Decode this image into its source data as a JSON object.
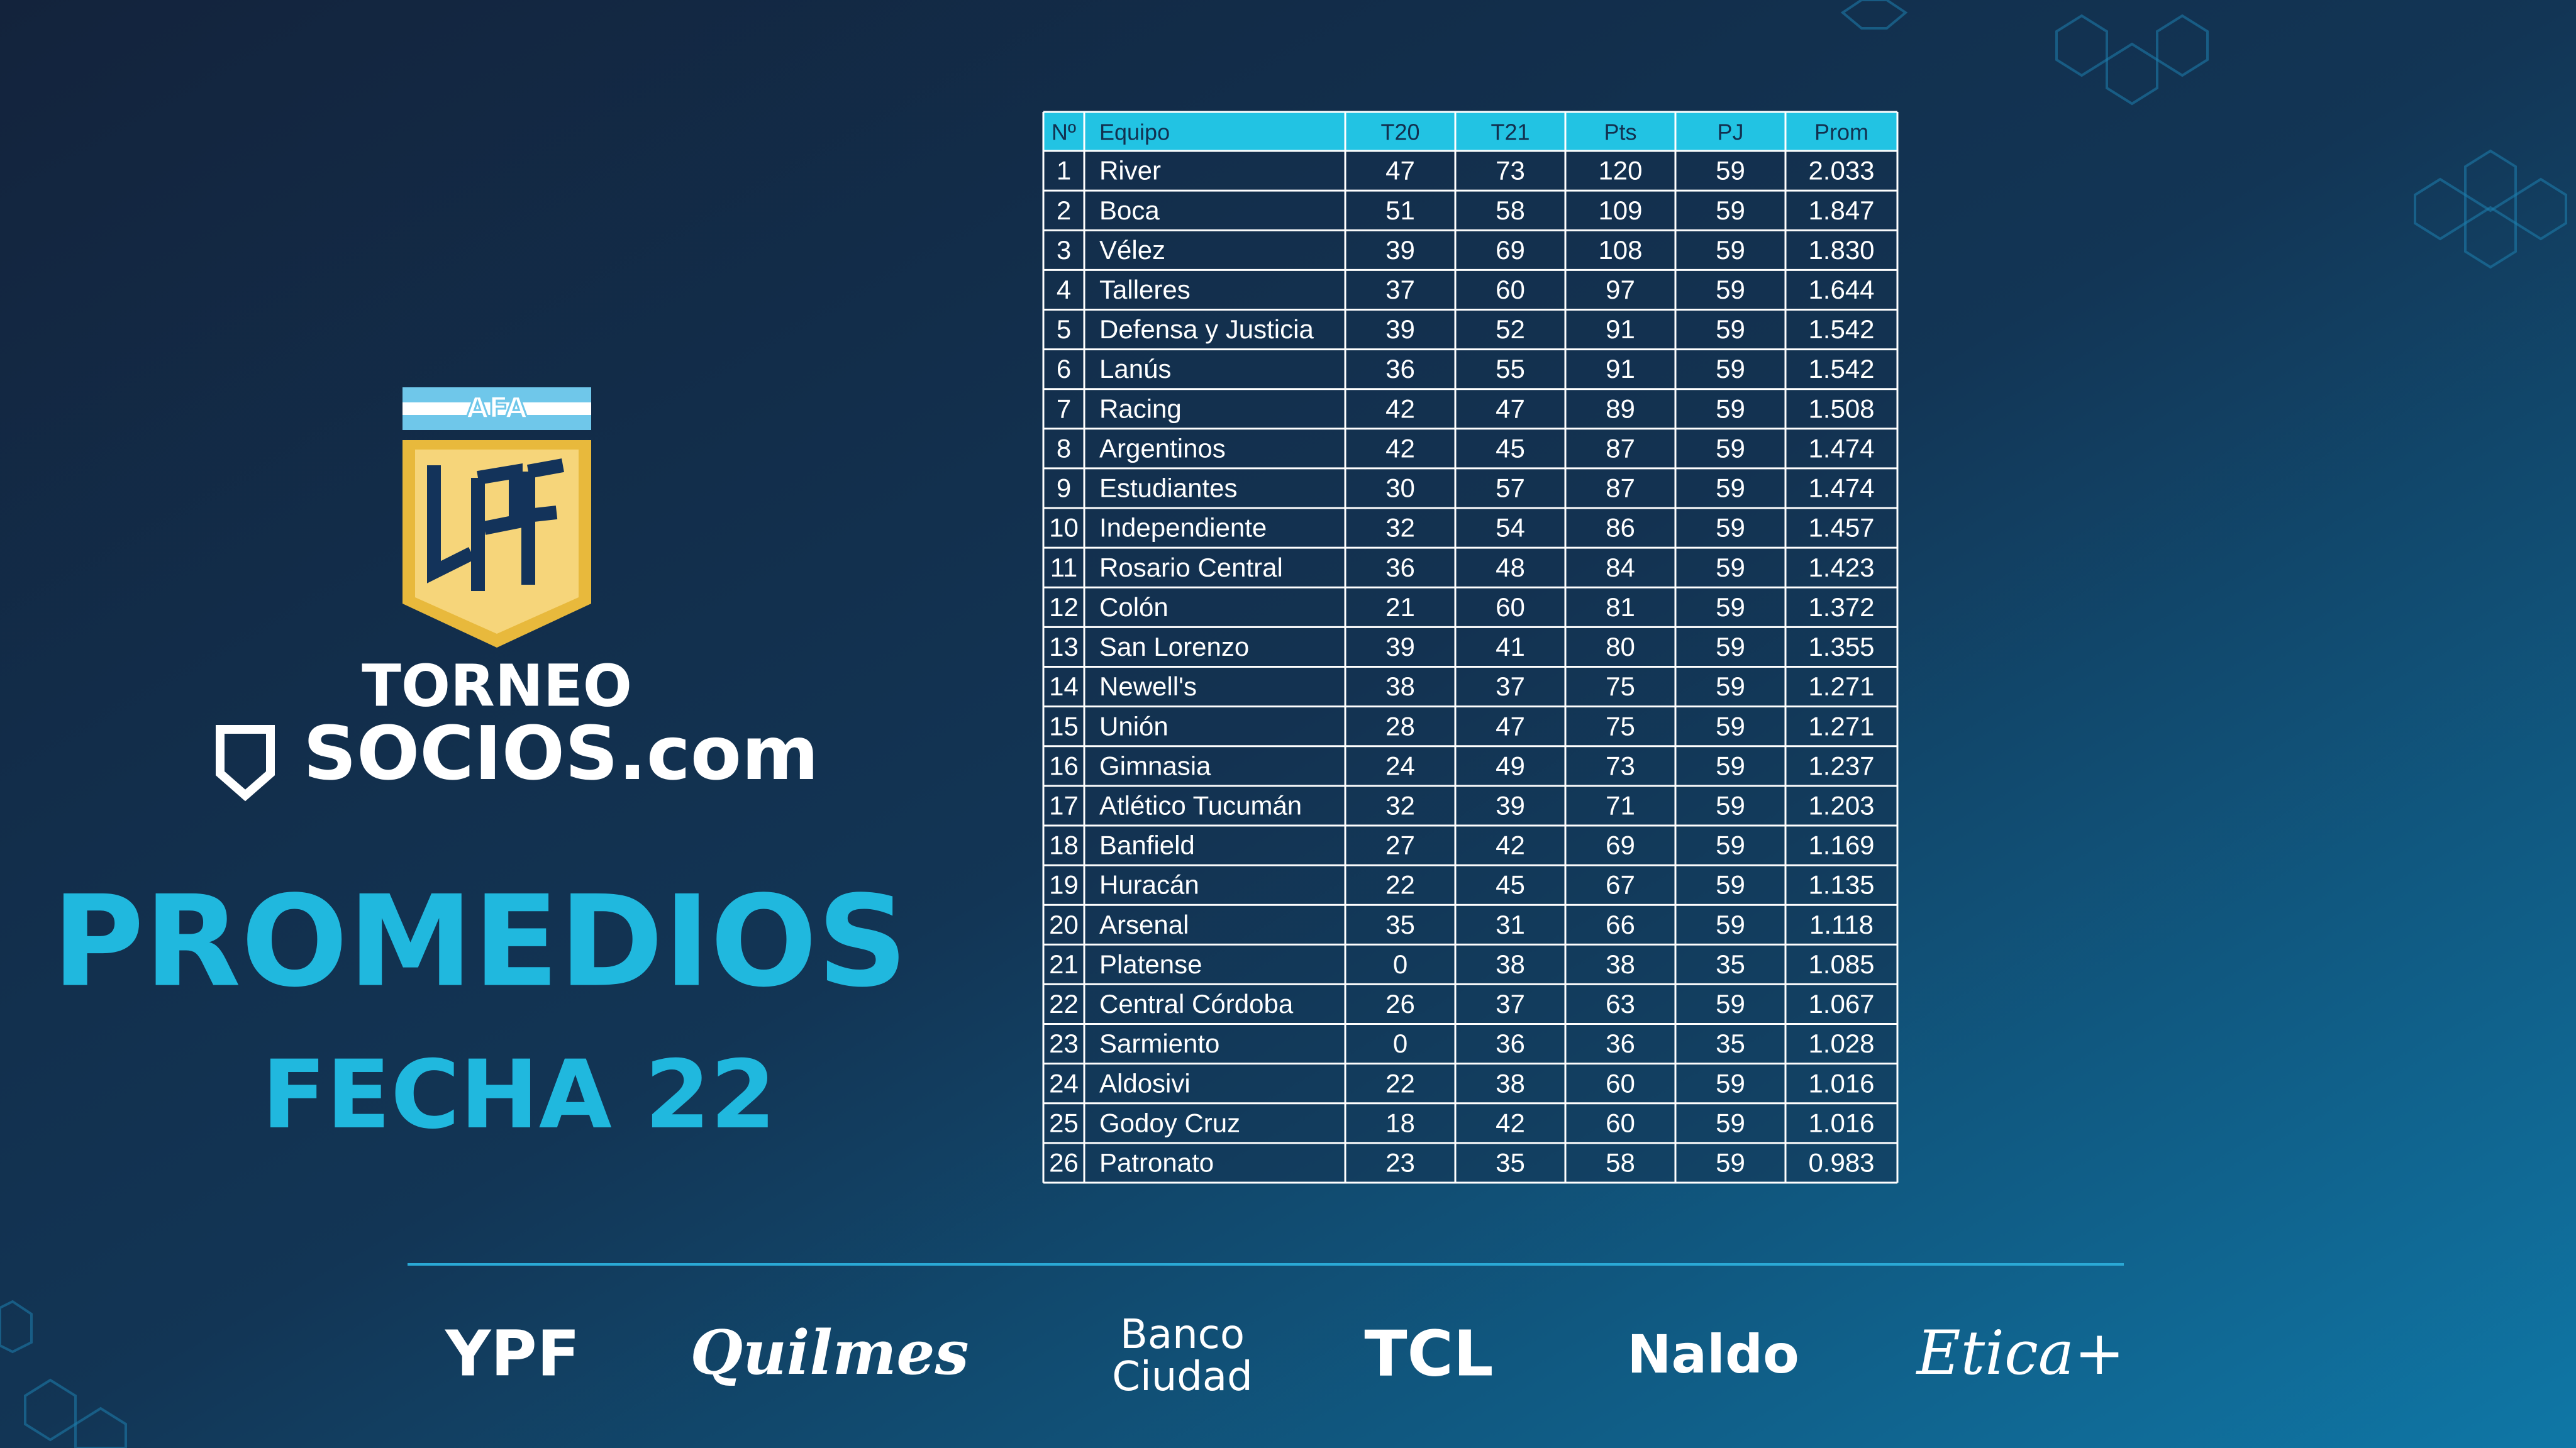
{
  "logo": {
    "badge": "AFA",
    "line1": "TORNEO",
    "line2": "SOCIOS.com"
  },
  "title": "PROMEDIOS",
  "subtitle": "FECHA 22",
  "table": {
    "columns": [
      "Nº",
      "Equipo",
      "T20",
      "T21",
      "Pts",
      "PJ",
      "Prom"
    ],
    "rows": [
      [
        1,
        "River",
        47,
        73,
        120,
        59,
        "2.033"
      ],
      [
        2,
        "Boca",
        51,
        58,
        109,
        59,
        "1.847"
      ],
      [
        3,
        "Vélez",
        39,
        69,
        108,
        59,
        "1.830"
      ],
      [
        4,
        "Talleres",
        37,
        60,
        97,
        59,
        "1.644"
      ],
      [
        5,
        "Defensa y Justicia",
        39,
        52,
        91,
        59,
        "1.542"
      ],
      [
        6,
        "Lanús",
        36,
        55,
        91,
        59,
        "1.542"
      ],
      [
        7,
        "Racing",
        42,
        47,
        89,
        59,
        "1.508"
      ],
      [
        8,
        "Argentinos",
        42,
        45,
        87,
        59,
        "1.474"
      ],
      [
        9,
        "Estudiantes",
        30,
        57,
        87,
        59,
        "1.474"
      ],
      [
        10,
        "Independiente",
        32,
        54,
        86,
        59,
        "1.457"
      ],
      [
        11,
        "Rosario Central",
        36,
        48,
        84,
        59,
        "1.423"
      ],
      [
        12,
        "Colón",
        21,
        60,
        81,
        59,
        "1.372"
      ],
      [
        13,
        "San Lorenzo",
        39,
        41,
        80,
        59,
        "1.355"
      ],
      [
        14,
        "Newell's",
        38,
        37,
        75,
        59,
        "1.271"
      ],
      [
        15,
        "Unión",
        28,
        47,
        75,
        59,
        "1.271"
      ],
      [
        16,
        "Gimnasia",
        24,
        49,
        73,
        59,
        "1.237"
      ],
      [
        17,
        "Atlético Tucumán",
        32,
        39,
        71,
        59,
        "1.203"
      ],
      [
        18,
        "Banfield",
        27,
        42,
        69,
        59,
        "1.169"
      ],
      [
        19,
        "Huracán",
        22,
        45,
        67,
        59,
        "1.135"
      ],
      [
        20,
        "Arsenal",
        35,
        31,
        66,
        59,
        "1.118"
      ],
      [
        21,
        "Platense",
        0,
        38,
        38,
        35,
        "1.085"
      ],
      [
        22,
        "Central Córdoba",
        26,
        37,
        63,
        59,
        "1.067"
      ],
      [
        23,
        "Sarmiento",
        0,
        36,
        36,
        35,
        "1.028"
      ],
      [
        24,
        "Aldosivi",
        22,
        38,
        60,
        59,
        "1.016"
      ],
      [
        25,
        "Godoy Cruz",
        18,
        42,
        60,
        59,
        "1.016"
      ],
      [
        26,
        "Patronato",
        23,
        35,
        58,
        59,
        "0.983"
      ]
    ]
  },
  "sponsors": [
    [
      "YPF"
    ],
    [
      "Quilmes"
    ],
    [
      "Banco",
      "Ciudad"
    ],
    [
      "TCL"
    ],
    [
      "Naldo"
    ],
    [
      "Etica+"
    ]
  ]
}
